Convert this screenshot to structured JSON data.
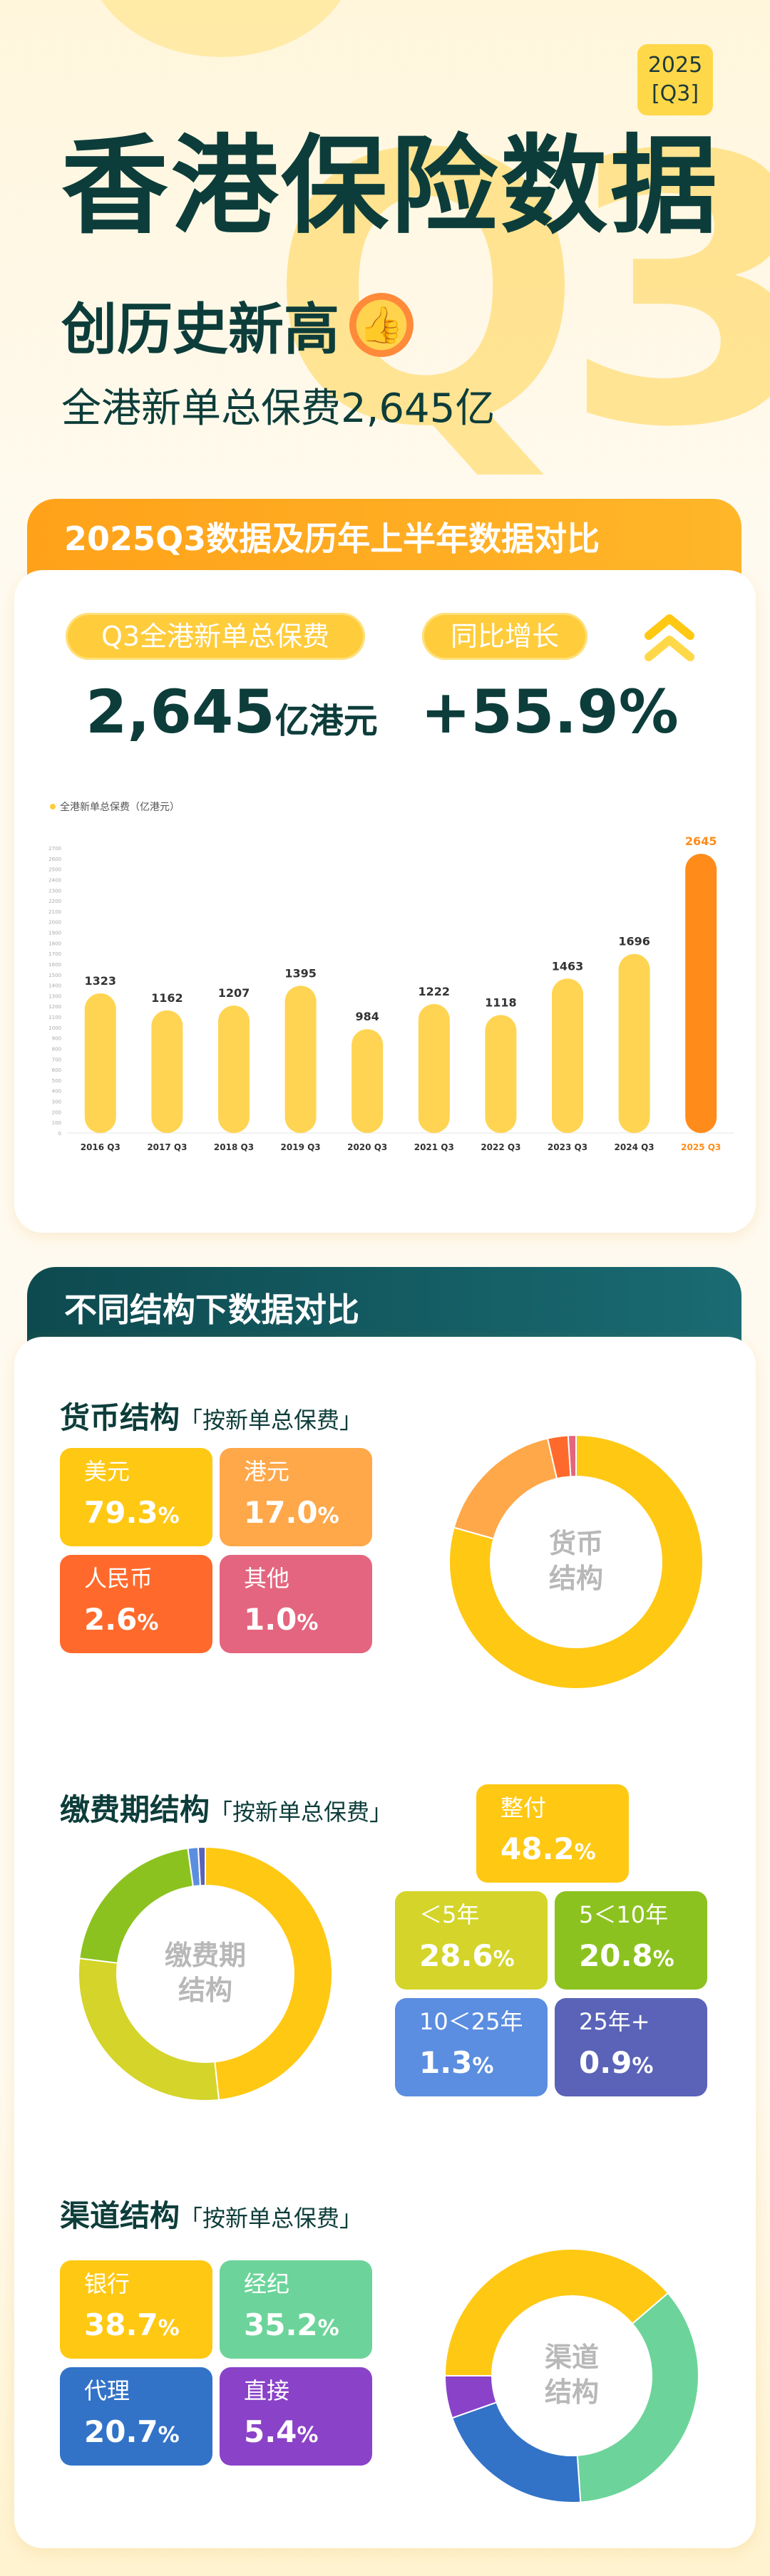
{
  "header": {
    "year_badge_line1": "2025",
    "year_badge_line2": "[Q3]",
    "title": "香港保险数据",
    "subtitle": "创历史新高",
    "subline": "全港新单总保费2,645亿"
  },
  "section1": {
    "tab_title": "2025Q3数据及历年上半年数据对比",
    "pill_a": "Q3全港新单总保费",
    "pill_b": "同比增长",
    "value_a": "2,645",
    "value_a_unit": "亿港元",
    "value_b": "+55.9%"
  },
  "chart_data": {
    "type": "bar",
    "series": [
      {
        "name": "全港新单总保费（亿港元）",
        "values": [
          1323,
          1162,
          1207,
          1395,
          984,
          1222,
          1118,
          1463,
          1696,
          2645
        ]
      }
    ],
    "categories": [
      "2016 Q3",
      "2017 Q3",
      "2018 Q3",
      "2019 Q3",
      "2020 Q3",
      "2021 Q3",
      "2022 Q3",
      "2023 Q3",
      "2024 Q3",
      "2025 Q3"
    ],
    "ylim": [
      0,
      2700
    ],
    "yticks": [
      0,
      100,
      200,
      300,
      400,
      500,
      600,
      700,
      800,
      900,
      1000,
      1100,
      1200,
      1300,
      1400,
      1500,
      1600,
      1700,
      1800,
      1900,
      2000,
      2100,
      2200,
      2300,
      2400,
      2500,
      2600,
      2700
    ],
    "highlight_index": 9,
    "bar_color": "#ffd452",
    "highlight_color": "#ff8c1a"
  },
  "section2": {
    "tab_title": "不同结构下数据对比",
    "currency": {
      "title": "货币结构",
      "note": "「按新单总保费」",
      "donut_label_1": "货币",
      "donut_label_2": "结构",
      "items": [
        {
          "label": "美元",
          "value": "79.3",
          "pct": "%",
          "color": "#ffc813",
          "share": 79.3
        },
        {
          "label": "港元",
          "value": "17.0",
          "pct": "%",
          "color": "#ffa84a",
          "share": 17.0
        },
        {
          "label": "人民币",
          "value": "2.6",
          "pct": "%",
          "color": "#ff6a2c",
          "share": 2.6
        },
        {
          "label": "其他",
          "value": "1.0",
          "pct": "%",
          "color": "#e4657f",
          "share": 1.0
        }
      ]
    },
    "payment": {
      "title": "缴费期结构",
      "note": "「按新单总保费」",
      "donut_label_1": "缴费期",
      "donut_label_2": "结构",
      "items": [
        {
          "label": "整付",
          "value": "48.2",
          "pct": "%",
          "color": "#ffc813",
          "share": 48.2
        },
        {
          "label": "＜5年",
          "value": "28.6",
          "pct": "%",
          "color": "#d4d42a",
          "share": 28.6
        },
        {
          "label": "5＜10年",
          "value": "20.8",
          "pct": "%",
          "color": "#8cc21f",
          "share": 20.8
        },
        {
          "label": "10＜25年",
          "value": "1.3",
          "pct": "%",
          "color": "#5b8ee0",
          "share": 1.3
        },
        {
          "label": "25年+",
          "value": "0.9",
          "pct": "%",
          "color": "#5a63b8",
          "share": 0.9
        }
      ]
    },
    "channel": {
      "title": "渠道结构",
      "note": "「按新单总保费」",
      "donut_label_1": "渠道",
      "donut_label_2": "结构",
      "items": [
        {
          "label": "银行",
          "value": "38.7",
          "pct": "%",
          "color": "#ffc813",
          "share": 38.7
        },
        {
          "label": "经纪",
          "value": "35.2",
          "pct": "%",
          "color": "#6cd49a",
          "share": 35.2
        },
        {
          "label": "代理",
          "value": "20.7",
          "pct": "%",
          "color": "#3273c8",
          "share": 20.7
        },
        {
          "label": "直接",
          "value": "5.4",
          "pct": "%",
          "color": "#8a42c8",
          "share": 5.4
        }
      ]
    }
  }
}
